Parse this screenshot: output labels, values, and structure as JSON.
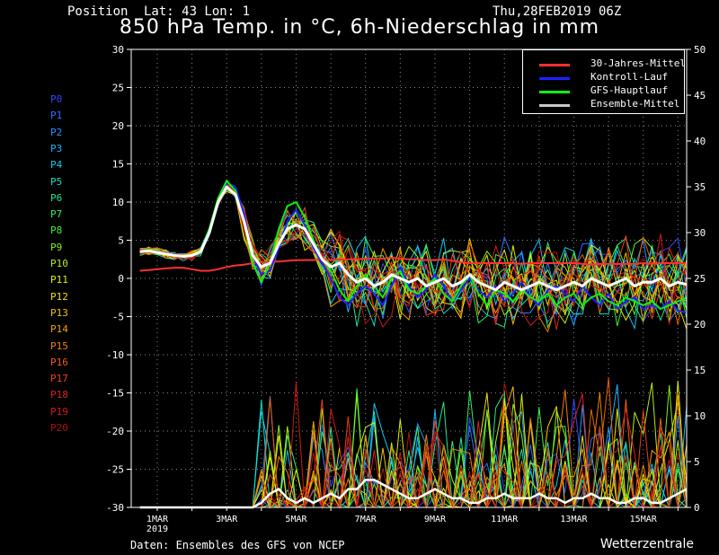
{
  "header": {
    "position_label": "Position",
    "coords": "Lat: 43 Lon: 1",
    "run": "Thu,28FEB2019 06Z",
    "title": "850 hPa Temp. in °C, 6h-Niederschlag in mm"
  },
  "footer": {
    "source": "Daten: Ensembles des GFS von NCEP",
    "brand": "Wetterzentrale"
  },
  "members": [
    {
      "label": "P0",
      "color": "#3048ff"
    },
    {
      "label": "P1",
      "color": "#3070ff"
    },
    {
      "label": "P2",
      "color": "#2a90ff"
    },
    {
      "label": "P3",
      "color": "#20b0ff"
    },
    {
      "label": "P4",
      "color": "#10c8f0"
    },
    {
      "label": "P5",
      "color": "#10e0c0"
    },
    {
      "label": "P6",
      "color": "#20e890"
    },
    {
      "label": "P7",
      "color": "#30f060"
    },
    {
      "label": "P8",
      "color": "#40f040"
    },
    {
      "label": "P9",
      "color": "#80f020"
    },
    {
      "label": "P10",
      "color": "#b0f010"
    },
    {
      "label": "P11",
      "color": "#e0f000"
    },
    {
      "label": "P12",
      "color": "#f0e000"
    },
    {
      "label": "P13",
      "color": "#f0c000"
    },
    {
      "label": "P14",
      "color": "#f0a000"
    },
    {
      "label": "P15",
      "color": "#f08000"
    },
    {
      "label": "P16",
      "color": "#f06000"
    },
    {
      "label": "P17",
      "color": "#f04010"
    },
    {
      "label": "P18",
      "color": "#e02020"
    },
    {
      "label": "P19",
      "color": "#d01818"
    },
    {
      "label": "P20",
      "color": "#b01010"
    }
  ],
  "legend": [
    {
      "label": "30-Jahres-Mittel",
      "color": "#ff3030"
    },
    {
      "label": "Kontroll-Lauf",
      "color": "#2020ff"
    },
    {
      "label": "GFS-Hauptlauf",
      "color": "#10f010"
    },
    {
      "label": "Ensemble-Mittel",
      "color": "#c8c8c8"
    }
  ],
  "chart_data": {
    "type": "line",
    "left_axis": {
      "label": "°C",
      "ylim": [
        -30,
        30
      ],
      "ticks": [
        "-30",
        "-25",
        "-20",
        "-15",
        "-10",
        "-5",
        "0",
        "5",
        "10",
        "15",
        "20",
        "25",
        "30"
      ]
    },
    "right_axis": {
      "label": "mm",
      "ylim": [
        0,
        50
      ],
      "ticks": [
        "0",
        "5",
        "10",
        "15",
        "20",
        "25",
        "30",
        "35",
        "40",
        "45",
        "50"
      ]
    },
    "x_ticks": [
      {
        "label": "1MAR",
        "sub": "2019",
        "day": 1.5
      },
      {
        "label": "3MAR",
        "day": 3.5
      },
      {
        "label": "5MAR",
        "day": 5.5
      },
      {
        "label": "7MAR",
        "day": 7.5
      },
      {
        "label": "9MAR",
        "day": 9.5
      },
      {
        "label": "11MAR",
        "day": 11.5
      },
      {
        "label": "13MAR",
        "day": 13.5
      },
      {
        "label": "15MAR",
        "day": 15.5
      }
    ],
    "xlim_days": [
      0.75,
      16.75
    ],
    "grid": true,
    "legend_position": "top-right",
    "series": [
      {
        "name": "30-Jahres-Mittel",
        "values": [
          1.0,
          1.1,
          1.2,
          1.3,
          1.4,
          1.4,
          1.2,
          1.0,
          1.0,
          1.2,
          1.5,
          1.7,
          1.8,
          2.0,
          2.1,
          2.2,
          2.2,
          2.3,
          2.4,
          2.4,
          2.4,
          2.5,
          2.4,
          2.5,
          2.5,
          2.5,
          2.6,
          2.6,
          2.6,
          2.7,
          2.6,
          2.5,
          2.5,
          2.4,
          2.4,
          2.5,
          2.3,
          2.1,
          2.0,
          2.0,
          2.0,
          2.0,
          2.0,
          2.0,
          1.9,
          2.0,
          2.0,
          2.0,
          2.0,
          2.0,
          2.0,
          1.9,
          1.8,
          1.9,
          1.9,
          1.9,
          1.9,
          1.9,
          2.0,
          1.9,
          2.0,
          2.0,
          2.0,
          2.0
        ]
      },
      {
        "name": "Kontroll-Lauf",
        "values": [
          3.5,
          3.7,
          3.5,
          3.3,
          3.1,
          2.9,
          3.0,
          3.4,
          6.0,
          10.0,
          12.5,
          12.0,
          8.5,
          3.0,
          0.5,
          1.0,
          4.0,
          7.5,
          9.0,
          7.0,
          4.0,
          2.0,
          0.0,
          -2.5,
          -3.5,
          -2.0,
          -1.0,
          -2.0,
          -3.5,
          -1.0,
          1.5,
          -1.0,
          -2.5,
          -1.5,
          0.5,
          -1.0,
          -3.0,
          -1.5,
          0.0,
          -1.5,
          -2.5,
          -1.0,
          -3.0,
          -2.0,
          -0.5,
          -2.5,
          -3.5,
          -1.5,
          -1.0,
          -2.0,
          -3.0,
          -1.0,
          -2.5,
          -3.5,
          -2.0,
          -4.0,
          -3.0,
          -2.5,
          -4.0,
          -3.5,
          -4.0,
          -3.0,
          -4.2,
          -4.5
        ]
      },
      {
        "name": "GFS-Hauptlauf",
        "values": [
          3.5,
          3.8,
          3.4,
          3.2,
          3.0,
          2.8,
          3.1,
          3.6,
          6.5,
          10.5,
          12.8,
          11.5,
          7.5,
          2.0,
          -0.5,
          2.0,
          6.5,
          9.5,
          10.0,
          8.0,
          5.0,
          2.5,
          1.0,
          -1.5,
          -3.0,
          -1.0,
          0.5,
          -1.0,
          -2.5,
          0.0,
          1.0,
          -1.5,
          -2.0,
          -1.0,
          0.0,
          -2.0,
          -3.0,
          -1.0,
          0.5,
          -2.0,
          -3.5,
          -1.5,
          -2.0,
          -3.0,
          -1.5,
          -2.5,
          -3.0,
          -2.0,
          -3.5,
          -2.5,
          -2.0,
          -3.5,
          -2.5,
          -2.0,
          -3.0,
          -3.5,
          -2.5,
          -3.0,
          -3.5,
          -3.0,
          -4.0,
          -3.5,
          -3.0,
          -2.5
        ]
      },
      {
        "name": "Ensemble-Mittel",
        "values": [
          3.5,
          3.6,
          3.4,
          3.2,
          3.0,
          2.9,
          3.0,
          3.5,
          6.0,
          10.0,
          12.0,
          11.0,
          7.5,
          3.0,
          1.5,
          2.0,
          4.5,
          6.5,
          7.0,
          6.5,
          4.5,
          2.5,
          1.5,
          2.0,
          0.5,
          -0.5,
          0.0,
          -1.0,
          -0.5,
          0.5,
          0.0,
          -0.5,
          0.0,
          -1.0,
          -0.5,
          0.0,
          -1.0,
          -0.5,
          0.5,
          -0.5,
          -1.0,
          -1.5,
          -0.5,
          -1.0,
          -1.5,
          -1.0,
          -0.5,
          -1.0,
          -1.5,
          -1.0,
          -0.5,
          -1.0,
          0.0,
          -0.5,
          -1.0,
          -0.5,
          0.0,
          -1.0,
          -0.5,
          -0.5,
          0.0,
          -1.0,
          -0.5,
          -0.8
        ]
      }
    ],
    "precip_mean_mm": [
      0,
      0,
      0,
      0,
      0,
      0,
      0,
      0,
      0,
      0,
      0,
      0,
      0,
      0,
      0.5,
      1.5,
      2,
      1,
      0.5,
      1,
      0.5,
      1,
      1.5,
      1,
      2,
      2,
      3,
      3,
      2.5,
      2,
      1.5,
      1,
      1,
      1.5,
      2,
      1.5,
      1,
      1,
      0.5,
      0.5,
      1,
      1,
      1.5,
      1,
      1,
      1,
      1.5,
      1,
      1,
      0.5,
      1,
      1,
      1.5,
      1,
      1,
      0.5,
      0.5,
      1,
      1,
      0.5,
      0.5,
      1,
      1.5,
      2
    ]
  }
}
